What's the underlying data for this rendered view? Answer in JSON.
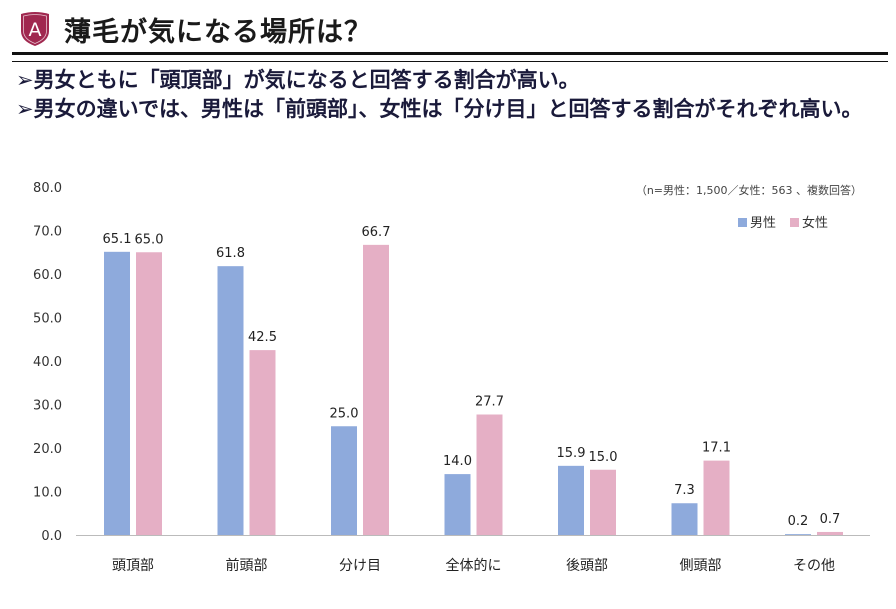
{
  "header": {
    "title": "薄毛が気になる場所は？",
    "logo_letter": "A"
  },
  "bullets": [
    {
      "marker": "➢",
      "text": "男女ともに「頭頂部」が気になると回答する割合が高い。"
    },
    {
      "marker": "➢",
      "text": "男女の違いでは、男性は「前頭部」、女性は「分け目」と回答する割合がそれぞれ高い。"
    }
  ],
  "chart_data": {
    "type": "bar",
    "note": "（n=男性：1,500／女性：563 、複数回答）",
    "categories": [
      "頭頂部",
      "前頭部",
      "分け目",
      "全体的に",
      "後頭部",
      "側頭部",
      "その他"
    ],
    "series": [
      {
        "name": "男性",
        "color": "#8eaadc",
        "values": [
          65.1,
          61.8,
          25.0,
          14.0,
          15.9,
          7.3,
          0.2
        ]
      },
      {
        "name": "女性",
        "color": "#e5afc5",
        "values": [
          65.0,
          42.5,
          66.7,
          27.7,
          15.0,
          17.1,
          0.7
        ]
      }
    ],
    "ylim": [
      0,
      80
    ],
    "yticks": [
      "0.0",
      "10.0",
      "20.0",
      "30.0",
      "40.0",
      "50.0",
      "60.0",
      "70.0",
      "80.0"
    ],
    "legend": "top-right",
    "grid": false
  }
}
